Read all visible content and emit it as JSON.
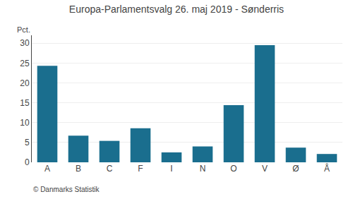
{
  "chart_data": {
    "type": "bar",
    "title": "Europa-Parlamentsvalg 26. maj 2019 - Sønderris",
    "ylabel": "Pct.",
    "annotations": [
      "© Danmarks Statistik"
    ],
    "categories": [
      "A",
      "B",
      "C",
      "F",
      "I",
      "N",
      "O",
      "V",
      "Ø",
      "Å"
    ],
    "values": [
      24.3,
      6.7,
      5.4,
      8.6,
      2.5,
      4.0,
      14.4,
      29.5,
      3.7,
      2.1
    ],
    "color": "#1a6e8e",
    "ylim": [
      0,
      32
    ],
    "yticks": [
      0,
      5,
      10,
      15,
      20,
      25,
      30
    ],
    "grid": true
  }
}
